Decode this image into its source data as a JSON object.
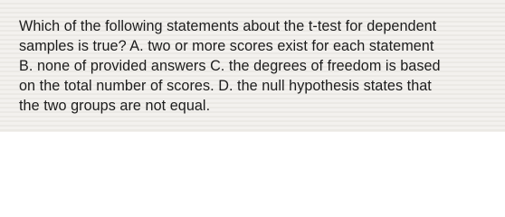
{
  "question": {
    "lines": [
      "Which of the following statements about the t-test for dependent",
      "samples is true? A. two or more scores exist for each statement",
      "B. none of provided answers C. the degrees of freedom is based",
      "on the total number of scores. D. the null hypothesis states that",
      "the two groups are not equal."
    ]
  }
}
